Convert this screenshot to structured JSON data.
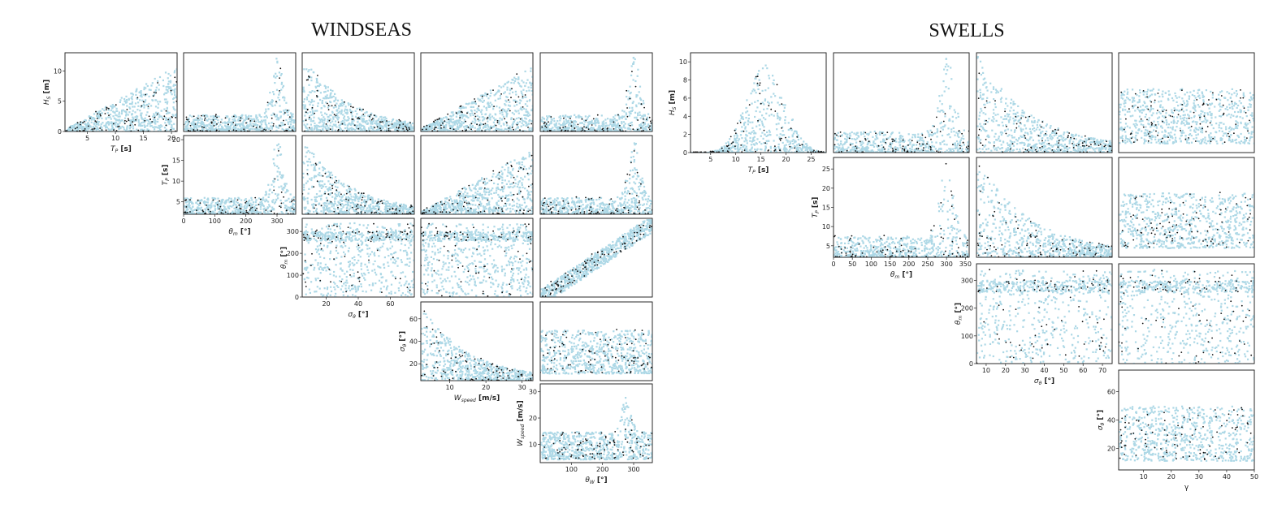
{
  "colors": {
    "cloud": "#add8e6",
    "points": "#111111"
  },
  "chart_data": [
    {
      "type": "scatter",
      "title": "WINDSEAS",
      "panels": [
        {
          "row": 0,
          "col": 0,
          "x": "Tp",
          "y": "Hs",
          "xlim": [
            1,
            21
          ],
          "ylim": [
            0,
            13
          ],
          "xticks": [
            5,
            10,
            15,
            20
          ],
          "yticks": [
            0,
            5,
            10
          ],
          "xlabel": "T_P [s]",
          "ylabel": "H_S [m]",
          "shape": "rise"
        },
        {
          "row": 0,
          "col": 1,
          "x": "theta_m",
          "y": "Hs",
          "xlim": [
            0,
            360
          ],
          "ylim": [
            0,
            13
          ],
          "shape": "peak300"
        },
        {
          "row": 0,
          "col": 2,
          "x": "sigma_theta",
          "y": "Hs",
          "xlim": [
            5,
            75
          ],
          "ylim": [
            0,
            13
          ],
          "shape": "decay"
        },
        {
          "row": 0,
          "col": 3,
          "x": "W_speed",
          "y": "Hs",
          "xlim": [
            0,
            33
          ],
          "ylim": [
            0,
            13
          ],
          "shape": "rise"
        },
        {
          "row": 0,
          "col": 4,
          "x": "theta_W",
          "y": "Hs",
          "xlim": [
            0,
            360
          ],
          "ylim": [
            0,
            13
          ],
          "shape": "peak300"
        },
        {
          "row": 1,
          "col": 1,
          "x": "theta_m",
          "y": "Tp",
          "xlim": [
            0,
            360
          ],
          "ylim": [
            2,
            21
          ],
          "xticks": [
            0,
            100,
            200,
            300
          ],
          "yticks": [
            5,
            10,
            15,
            20
          ],
          "xlabel": "θ_m [°]",
          "ylabel": "T_P [s]",
          "shape": "peak300"
        },
        {
          "row": 1,
          "col": 2,
          "x": "sigma_theta",
          "y": "Tp",
          "xlim": [
            5,
            75
          ],
          "ylim": [
            2,
            21
          ],
          "shape": "decay"
        },
        {
          "row": 1,
          "col": 3,
          "x": "W_speed",
          "y": "Tp",
          "xlim": [
            0,
            33
          ],
          "ylim": [
            2,
            21
          ],
          "shape": "rise"
        },
        {
          "row": 1,
          "col": 4,
          "x": "theta_W",
          "y": "Tp",
          "xlim": [
            0,
            360
          ],
          "ylim": [
            2,
            21
          ],
          "shape": "peak300"
        },
        {
          "row": 2,
          "col": 2,
          "x": "sigma_theta",
          "y": "theta_m",
          "xlim": [
            5,
            75
          ],
          "ylim": [
            0,
            360
          ],
          "xticks": [
            20,
            40,
            60
          ],
          "yticks": [
            0,
            100,
            200,
            300
          ],
          "xlabel": "σ_θ [°]",
          "ylabel": "θ_m [°]",
          "shape": "band"
        },
        {
          "row": 2,
          "col": 3,
          "x": "W_speed",
          "y": "theta_m",
          "xlim": [
            0,
            33
          ],
          "ylim": [
            0,
            360
          ],
          "shape": "band"
        },
        {
          "row": 2,
          "col": 4,
          "x": "theta_W",
          "y": "theta_m",
          "xlim": [
            0,
            360
          ],
          "ylim": [
            0,
            360
          ],
          "shape": "diagonal"
        },
        {
          "row": 3,
          "col": 3,
          "x": "W_speed",
          "y": "sigma_theta",
          "xlim": [
            2,
            33
          ],
          "ylim": [
            5,
            75
          ],
          "xticks": [
            10,
            20,
            30
          ],
          "yticks": [
            20,
            40,
            60
          ],
          "xlabel": "W_speed [m/s]",
          "ylabel": "σ_θ [°]",
          "shape": "decay"
        },
        {
          "row": 3,
          "col": 4,
          "x": "theta_W",
          "y": "sigma_theta",
          "xlim": [
            0,
            360
          ],
          "ylim": [
            5,
            75
          ],
          "shape": "flat"
        },
        {
          "row": 4,
          "col": 4,
          "x": "theta_W",
          "y": "W_speed",
          "xlim": [
            0,
            360
          ],
          "ylim": [
            3,
            33
          ],
          "xticks": [
            100,
            200,
            300
          ],
          "yticks": [
            10,
            20,
            30
          ],
          "xlabel": "θ_W [°]",
          "ylabel": "W_speed [m/s]",
          "shape": "peak270"
        }
      ]
    },
    {
      "type": "scatter",
      "title": "SWELLS",
      "panels": [
        {
          "row": 0,
          "col": 0,
          "x": "Tp",
          "y": "Hs",
          "xlim": [
            1,
            28
          ],
          "ylim": [
            0,
            11
          ],
          "xticks": [
            5,
            10,
            15,
            20,
            25
          ],
          "yticks": [
            0,
            2,
            4,
            6,
            8,
            10
          ],
          "xlabel": "T_P [s]",
          "ylabel": "H_S [m]",
          "shape": "hump"
        },
        {
          "row": 0,
          "col": 1,
          "x": "theta_m",
          "y": "Hs",
          "xlim": [
            0,
            360
          ],
          "ylim": [
            0,
            11
          ],
          "shape": "peak300"
        },
        {
          "row": 0,
          "col": 2,
          "x": "sigma_theta",
          "y": "Hs",
          "xlim": [
            5,
            75
          ],
          "ylim": [
            0,
            11
          ],
          "shape": "decay"
        },
        {
          "row": 0,
          "col": 3,
          "x": "gamma",
          "y": "Hs",
          "xlim": [
            1,
            50
          ],
          "ylim": [
            0,
            11
          ],
          "shape": "flat"
        },
        {
          "row": 1,
          "col": 1,
          "x": "theta_m",
          "y": "Tp",
          "xlim": [
            0,
            360
          ],
          "ylim": [
            2,
            28
          ],
          "xticks": [
            0,
            50,
            100,
            150,
            200,
            250,
            300,
            350
          ],
          "yticks": [
            5,
            10,
            15,
            20,
            25
          ],
          "xlabel": "θ_m [°]",
          "ylabel": "T_P [s]",
          "shape": "peak300"
        },
        {
          "row": 1,
          "col": 2,
          "x": "sigma_theta",
          "y": "Tp",
          "xlim": [
            5,
            75
          ],
          "ylim": [
            2,
            28
          ],
          "shape": "decay"
        },
        {
          "row": 1,
          "col": 3,
          "x": "gamma",
          "y": "Tp",
          "xlim": [
            1,
            50
          ],
          "ylim": [
            2,
            28
          ],
          "shape": "flat"
        },
        {
          "row": 2,
          "col": 2,
          "x": "sigma_theta",
          "y": "theta_m",
          "xlim": [
            5,
            75
          ],
          "ylim": [
            0,
            360
          ],
          "xticks": [
            10,
            20,
            30,
            40,
            50,
            60,
            70
          ],
          "yticks": [
            0,
            100,
            200,
            300
          ],
          "xlabel": "σ_θ [°]",
          "ylabel": "θ_m [°]",
          "shape": "band"
        },
        {
          "row": 2,
          "col": 3,
          "x": "gamma",
          "y": "theta_m",
          "xlim": [
            1,
            50
          ],
          "ylim": [
            0,
            360
          ],
          "shape": "band"
        },
        {
          "row": 3,
          "col": 3,
          "x": "gamma",
          "y": "sigma_theta",
          "xlim": [
            1,
            50
          ],
          "ylim": [
            5,
            75
          ],
          "xticks": [
            10,
            20,
            30,
            40,
            50
          ],
          "yticks": [
            20,
            40,
            60
          ],
          "xlabel": "γ",
          "ylabel": "σ_θ [°]",
          "shape": "flat"
        }
      ]
    }
  ]
}
